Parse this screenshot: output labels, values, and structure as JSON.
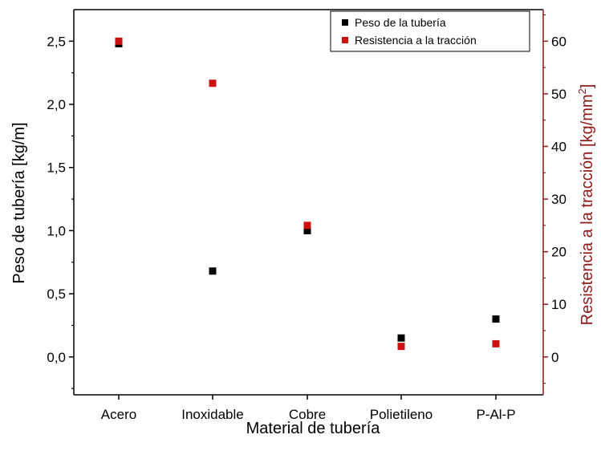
{
  "chart_data": {
    "type": "scatter",
    "categories": [
      "Acero",
      "Inoxidable",
      "Cobre",
      "Polietileno",
      "P-Al-P"
    ],
    "xlabel": "Material de tubería",
    "ylabel_left": "Peso de tubería [kg/m]",
    "ylabel_right_main": "Resistencia a la tracción [kg/mm",
    "ylabel_right_sup": "2",
    "ylabel_right_end": "]",
    "ylim_left": [
      -0.3,
      2.75
    ],
    "ylim_right": [
      -7.2,
      66
    ],
    "yticks_left": [
      "0,0",
      "0,5",
      "1,0",
      "1,5",
      "2,0",
      "2,5"
    ],
    "yticks_left_values": [
      0,
      0.5,
      1.0,
      1.5,
      2.0,
      2.5
    ],
    "yticks_right": [
      "0",
      "10",
      "20",
      "30",
      "40",
      "50",
      "60"
    ],
    "yticks_right_values": [
      0,
      10,
      20,
      30,
      40,
      50,
      60
    ],
    "legend_position": "top-right",
    "series": [
      {
        "name": "Peso de la tubería",
        "axis": "left",
        "color": "#000000",
        "values": [
          2.48,
          0.68,
          1.0,
          0.15,
          0.3
        ]
      },
      {
        "name": "Resistencia a la tracción",
        "axis": "right",
        "color": "#cc1111",
        "values": [
          60,
          52,
          25,
          2,
          2.5
        ]
      }
    ],
    "grid": false,
    "colors": {
      "right_axis": "#8b1a1a",
      "left_axis": "#000000"
    }
  }
}
